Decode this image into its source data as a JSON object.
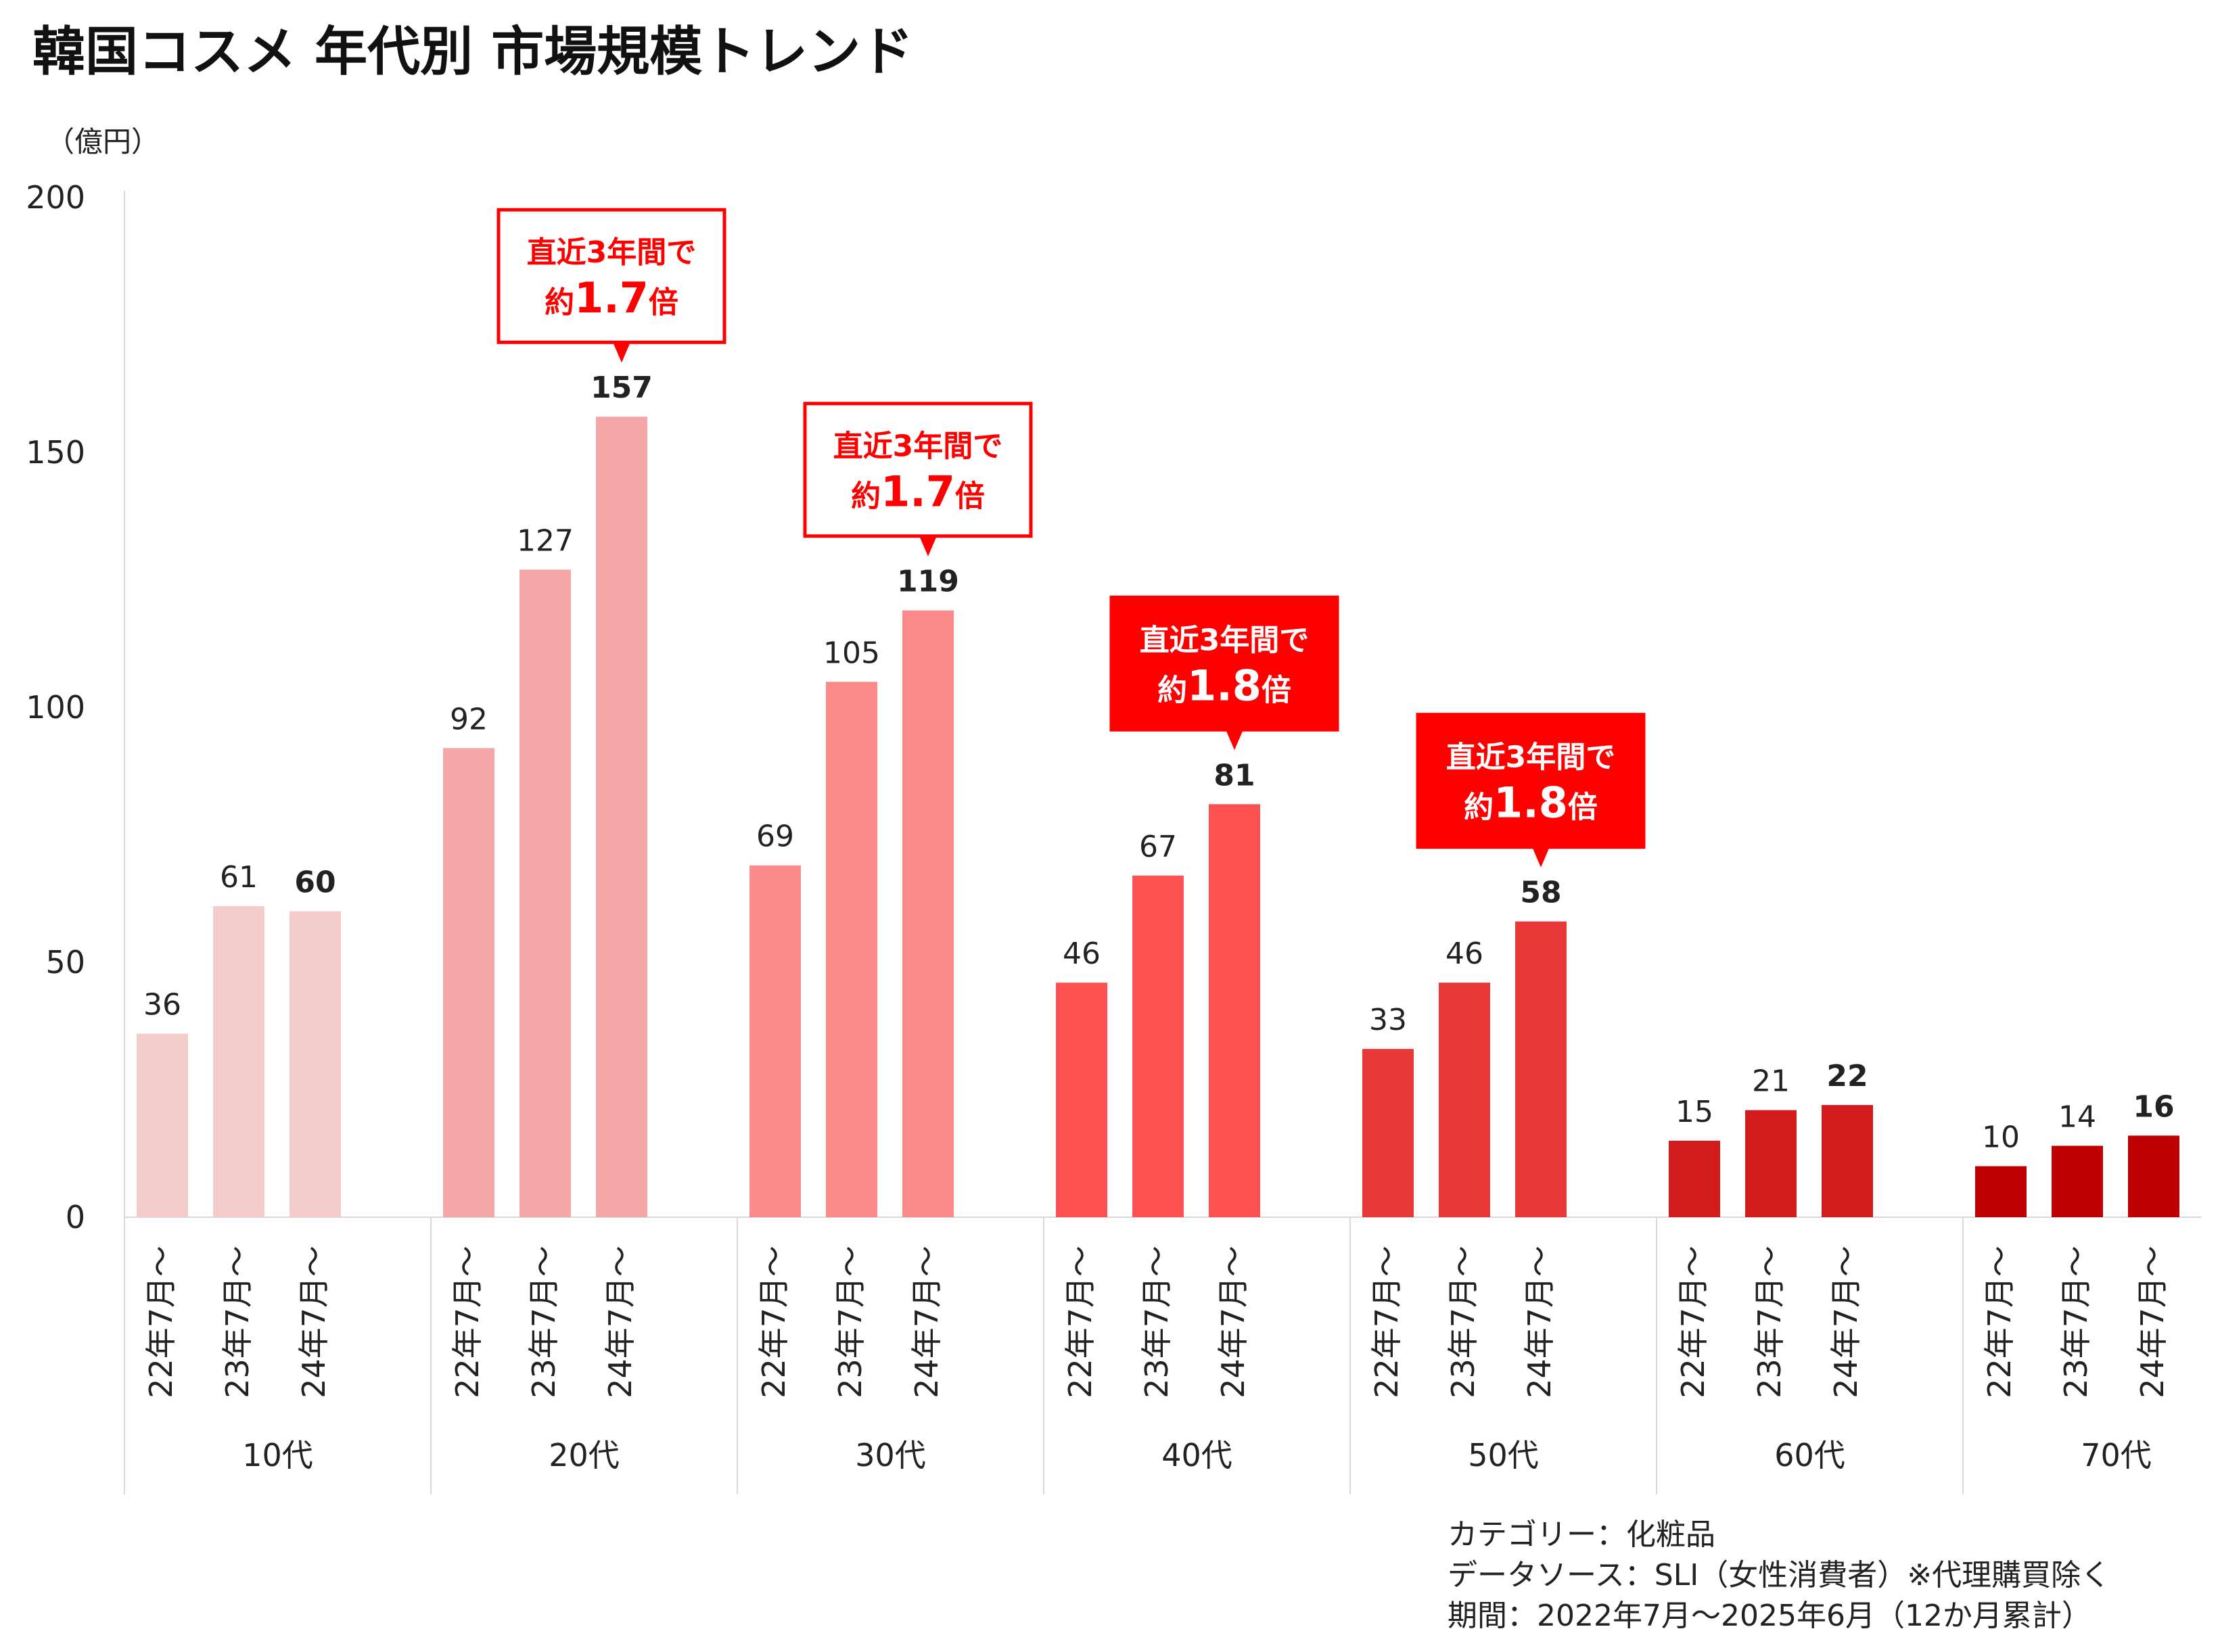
{
  "chart_data": {
    "type": "bar",
    "title": "韓国コスメ 年代別 市場規模トレンド",
    "unit_label": "（億円）",
    "ylim": [
      0,
      200
    ],
    "yticks": [
      0,
      50,
      100,
      150,
      200
    ],
    "grid": false,
    "legend": "none",
    "period_labels": [
      "22年7月～",
      "23年7月～",
      "24年7月～"
    ],
    "groups": [
      {
        "name": "10代",
        "values": [
          36,
          61,
          60
        ],
        "color": "#f4cccc"
      },
      {
        "name": "20代",
        "values": [
          92,
          127,
          157
        ],
        "color": "#f5a6a6"
      },
      {
        "name": "30代",
        "values": [
          69,
          105,
          119
        ],
        "color": "#fb8a8a"
      },
      {
        "name": "40代",
        "values": [
          46,
          67,
          81
        ],
        "color": "#fe5252"
      },
      {
        "name": "50代",
        "values": [
          33,
          46,
          58
        ],
        "color": "#e83838"
      },
      {
        "name": "60代",
        "values": [
          15,
          21,
          22
        ],
        "color": "#d21c1c"
      },
      {
        "name": "70代",
        "values": [
          10,
          14,
          16
        ],
        "color": "#bf0000"
      }
    ],
    "callouts": [
      {
        "group": 1,
        "style": "outline",
        "line1": "直近3年間で",
        "prefix": "約",
        "value": "1.7",
        "suffix": "倍"
      },
      {
        "group": 2,
        "style": "outline",
        "line1": "直近3年間で",
        "prefix": "約",
        "value": "1.7",
        "suffix": "倍"
      },
      {
        "group": 3,
        "style": "filled",
        "line1": "直近3年間で",
        "prefix": "約",
        "value": "1.8",
        "suffix": "倍"
      },
      {
        "group": 4,
        "style": "filled",
        "line1": "直近3年間で",
        "prefix": "約",
        "value": "1.8",
        "suffix": "倍"
      }
    ],
    "accent_color": "#ff0000"
  },
  "notes": {
    "category": "カテゴリー：化粧品",
    "source": "データソース：SLI（女性消費者）※代理購買除く",
    "period": "期間：2022年7月～2025年6月（12か月累計）"
  }
}
